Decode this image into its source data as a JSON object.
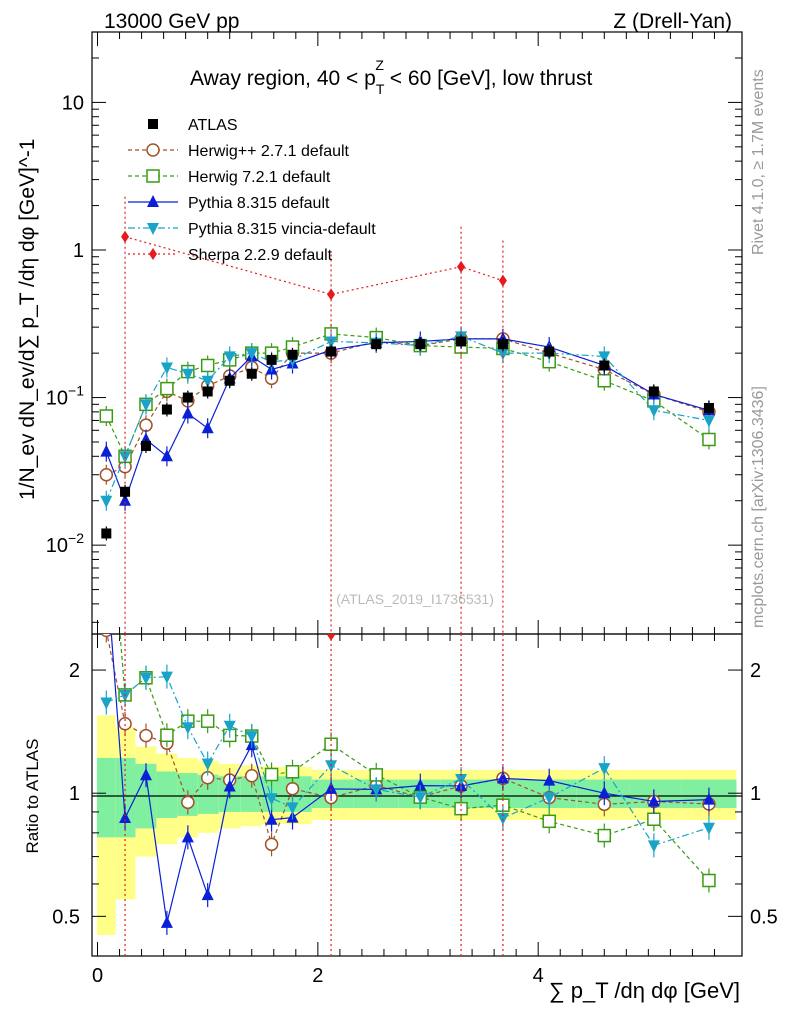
{
  "header": {
    "left": "13000 GeV pp",
    "right": "Z (Drell-Yan)"
  },
  "titles": {
    "main": "Away region, 40 < p",
    "main_sub": "T",
    "main_sup": "Z",
    "main_tail": " < 60 [GeV], low thrust",
    "analysis_tag": "(ATLAS_2019_I1736531)",
    "side_top": "Rivet 4.1.0, ≥ 1.7M events",
    "side_bottom": "mcplots.cern.ch [arXiv:1306.3436]"
  },
  "axes": {
    "ylabel_top": "1/N_ev dN_ev/d∑ p_T /dη dφ [GeV]^-1",
    "ylabel_ratio": "Ratio to ATLAS",
    "xlabel": "∑ p_T /dη dφ [GeV]",
    "top_yticks": [
      {
        "v": 0.01,
        "base": "10",
        "exp": "−2"
      },
      {
        "v": 0.1,
        "base": "10",
        "exp": "−1"
      },
      {
        "v": 1,
        "base": "1",
        "exp": ""
      },
      {
        "v": 10,
        "base": "10",
        "exp": ""
      }
    ],
    "ratio_yticks": [
      {
        "v": 0.5,
        "label": "0.5"
      },
      {
        "v": 1,
        "label": "1"
      },
      {
        "v": 2,
        "label": "2"
      }
    ],
    "xticks": [
      {
        "v": 0,
        "label": "0"
      },
      {
        "v": 2,
        "label": "2"
      },
      {
        "v": 4,
        "label": "4"
      }
    ]
  },
  "chart_data": {
    "type": "scatter",
    "title": "Away region, 40 < pT^Z < 60 [GeV], low thrust",
    "xlabel": "∑ pT /dη dφ [GeV]",
    "ylabel": "1/Nev dNev/d∑ pT /dη dφ [GeV]^-1",
    "xlim": [
      -0.05,
      5.85
    ],
    "ylim_log": [
      0.0025,
      30
    ],
    "ratio_ylim_log": [
      0.4,
      2.45
    ],
    "x": [
      0.08,
      0.25,
      0.44,
      0.63,
      0.82,
      1.0,
      1.2,
      1.4,
      1.58,
      1.77,
      2.12,
      2.53,
      2.93,
      3.3,
      3.68,
      4.1,
      4.6,
      5.05,
      5.55
    ],
    "data": {
      "name": "ATLAS",
      "values": [
        0.012,
        0.023,
        0.047,
        0.083,
        0.1,
        0.11,
        0.13,
        0.145,
        0.18,
        0.195,
        0.205,
        0.23,
        0.23,
        0.24,
        0.23,
        0.205,
        0.165,
        0.11,
        0.085
      ],
      "band_stat": [
        0.22,
        0.22,
        0.18,
        0.13,
        0.12,
        0.11,
        0.1,
        0.1,
        0.1,
        0.1,
        0.08,
        0.08,
        0.08,
        0.08,
        0.08,
        0.08,
        0.08,
        0.08,
        0.08
      ],
      "band_total": [
        0.55,
        0.45,
        0.3,
        0.25,
        0.22,
        0.2,
        0.18,
        0.17,
        0.16,
        0.16,
        0.14,
        0.14,
        0.14,
        0.14,
        0.14,
        0.14,
        0.14,
        0.14,
        0.14
      ]
    },
    "series": [
      {
        "name": "Herwig++ 2.7.1 default",
        "color": "#a0522d",
        "marker": "circle-open",
        "dash": "4,3",
        "values": [
          0.03,
          0.034,
          0.065,
          0.11,
          0.095,
          0.12,
          0.14,
          0.16,
          0.135,
          0.2,
          0.2,
          0.24,
          0.225,
          0.25,
          0.25,
          0.2,
          0.155,
          0.105,
          0.08
        ]
      },
      {
        "name": "Herwig 7.2.1 default",
        "color": "#3a9a12",
        "marker": "square-open",
        "dash": "4,3",
        "values": [
          0.075,
          0.04,
          0.09,
          0.115,
          0.15,
          0.165,
          0.18,
          0.2,
          0.2,
          0.22,
          0.27,
          0.255,
          0.225,
          0.22,
          0.215,
          0.175,
          0.13,
          0.095,
          0.052
        ]
      },
      {
        "name": "Pythia 8.315 default",
        "color": "#0a1fd6",
        "marker": "triangle-up",
        "dash": "",
        "values": [
          0.043,
          0.02,
          0.052,
          0.04,
          0.078,
          0.062,
          0.135,
          0.19,
          0.155,
          0.17,
          0.21,
          0.235,
          0.24,
          0.25,
          0.25,
          0.22,
          0.165,
          0.105,
          0.082
        ]
      },
      {
        "name": "Pythia 8.315 vincia-default",
        "color": "#1aa3c8",
        "marker": "triangle-down",
        "dash": "7,3,2,3",
        "values": [
          0.02,
          0.04,
          0.09,
          0.16,
          0.145,
          0.13,
          0.19,
          0.2,
          0.175,
          0.18,
          0.24,
          0.235,
          0.225,
          0.26,
          0.2,
          0.2,
          0.19,
          0.082,
          0.07
        ]
      },
      {
        "name": "Sherpa 2.2.9 default",
        "color": "#e41a1c",
        "marker": "diamond",
        "dash": "2,3",
        "x": [
          0.25,
          2.12,
          3.3,
          3.68
        ],
        "values": [
          1.23,
          0.5,
          0.77,
          0.62
        ]
      }
    ]
  }
}
